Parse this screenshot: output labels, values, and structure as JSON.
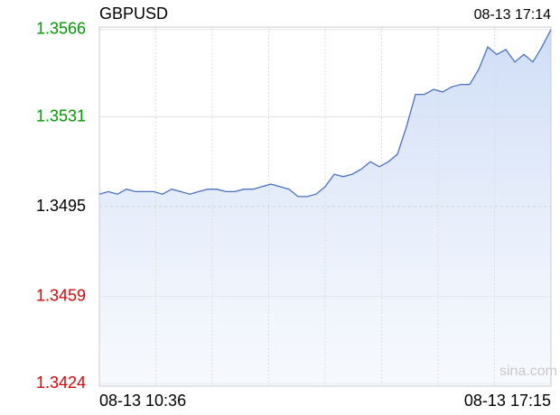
{
  "chart_data": {
    "type": "line",
    "title": "GBPUSD",
    "timestamp": "08-13 17:14",
    "watermark": "sina.com",
    "categories": [
      "08-13 10:36",
      null,
      null,
      null,
      null,
      null,
      null,
      null,
      null,
      null,
      null,
      null,
      null,
      null,
      null,
      null,
      null,
      null,
      null,
      null,
      null,
      null,
      null,
      null,
      null,
      null,
      null,
      null,
      null,
      null,
      null,
      null,
      null,
      null,
      null,
      null,
      null,
      null,
      null,
      null,
      null,
      null,
      null,
      null,
      null,
      null,
      null,
      null,
      null,
      null,
      "08-13 17:15"
    ],
    "values": [
      1.35,
      1.3501,
      1.35,
      1.3502,
      1.3501,
      1.3501,
      1.3501,
      1.35,
      1.3502,
      1.3501,
      1.35,
      1.3501,
      1.3502,
      1.3502,
      1.3501,
      1.3501,
      1.3502,
      1.3502,
      1.3503,
      1.3504,
      1.3503,
      1.3502,
      1.3499,
      1.3499,
      1.35,
      1.3503,
      1.3508,
      1.3507,
      1.3508,
      1.351,
      1.3513,
      1.3511,
      1.3513,
      1.3516,
      1.3527,
      1.354,
      1.354,
      1.3542,
      1.3541,
      1.3543,
      1.3544,
      1.3544,
      1.355,
      1.3559,
      1.3556,
      1.3558,
      1.3553,
      1.3556,
      1.3553,
      1.3559,
      1.3566
    ],
    "color": "#4a72c2",
    "ylim": [
      1.3423,
      1.3567
    ],
    "yticks": [
      1.3566,
      1.3531,
      1.3495,
      1.3459,
      1.3424
    ],
    "ytick_colors": [
      "#009900",
      "#009900",
      "#000000",
      "#e00000",
      "#e00000"
    ],
    "grid": true
  }
}
